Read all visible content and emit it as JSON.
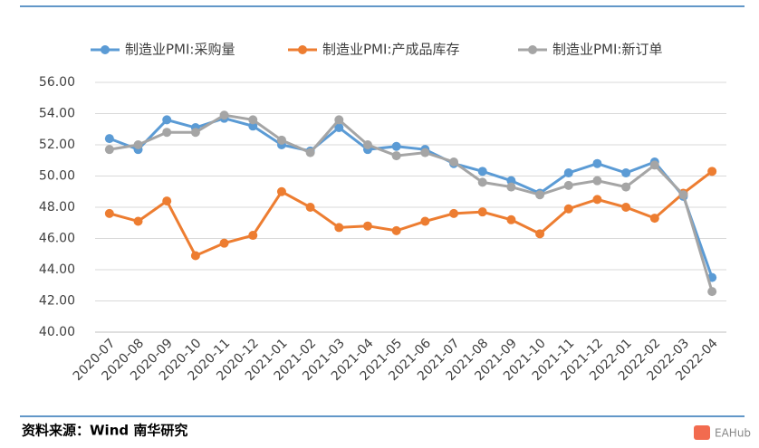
{
  "chart_data": {
    "type": "line",
    "categories": [
      "2020-07",
      "2020-08",
      "2020-09",
      "2020-10",
      "2020-11",
      "2020-12",
      "2021-01",
      "2021-02",
      "2021-03",
      "2021-04",
      "2021-05",
      "2021-06",
      "2021-07",
      "2021-08",
      "2021-09",
      "2021-10",
      "2021-11",
      "2021-12",
      "2022-01",
      "2022-02",
      "2022-03",
      "2022-04"
    ],
    "series": [
      {
        "name": "制造业PMI:采购量",
        "color": "#5b9bd5",
        "values": [
          52.4,
          51.7,
          53.6,
          53.1,
          53.7,
          53.2,
          52.0,
          51.6,
          53.1,
          51.7,
          51.9,
          51.7,
          50.8,
          50.3,
          49.7,
          48.9,
          50.2,
          50.8,
          50.2,
          50.9,
          48.7,
          43.5
        ]
      },
      {
        "name": "制造业PMI:产成品库存",
        "color": "#ed7d31",
        "values": [
          47.6,
          47.1,
          48.4,
          44.9,
          45.7,
          46.2,
          49.0,
          48.0,
          46.7,
          46.8,
          46.5,
          47.1,
          47.6,
          47.7,
          47.2,
          46.3,
          47.9,
          48.5,
          48.0,
          47.3,
          48.9,
          50.3
        ]
      },
      {
        "name": "制造业PMI:新订单",
        "color": "#a5a5a5",
        "values": [
          51.7,
          52.0,
          52.8,
          52.8,
          53.9,
          53.6,
          52.3,
          51.5,
          53.6,
          52.0,
          51.3,
          51.5,
          50.9,
          49.6,
          49.3,
          48.8,
          49.4,
          49.7,
          49.3,
          50.7,
          48.8,
          42.6
        ]
      }
    ],
    "ylim": [
      40,
      56
    ],
    "yticks": [
      {
        "value": 40,
        "label": "40.00"
      },
      {
        "value": 42,
        "label": "42.00"
      },
      {
        "value": 44,
        "label": "44.00"
      },
      {
        "value": 46,
        "label": "46.00"
      },
      {
        "value": 48,
        "label": "48.00"
      },
      {
        "value": 50,
        "label": "50.00"
      },
      {
        "value": 52,
        "label": "52.00"
      },
      {
        "value": 54,
        "label": "54.00"
      },
      {
        "value": 56,
        "label": "56.00"
      }
    ],
    "grid": true
  },
  "source": "资料来源：Wind 南华研究",
  "watermark": "EAHub"
}
